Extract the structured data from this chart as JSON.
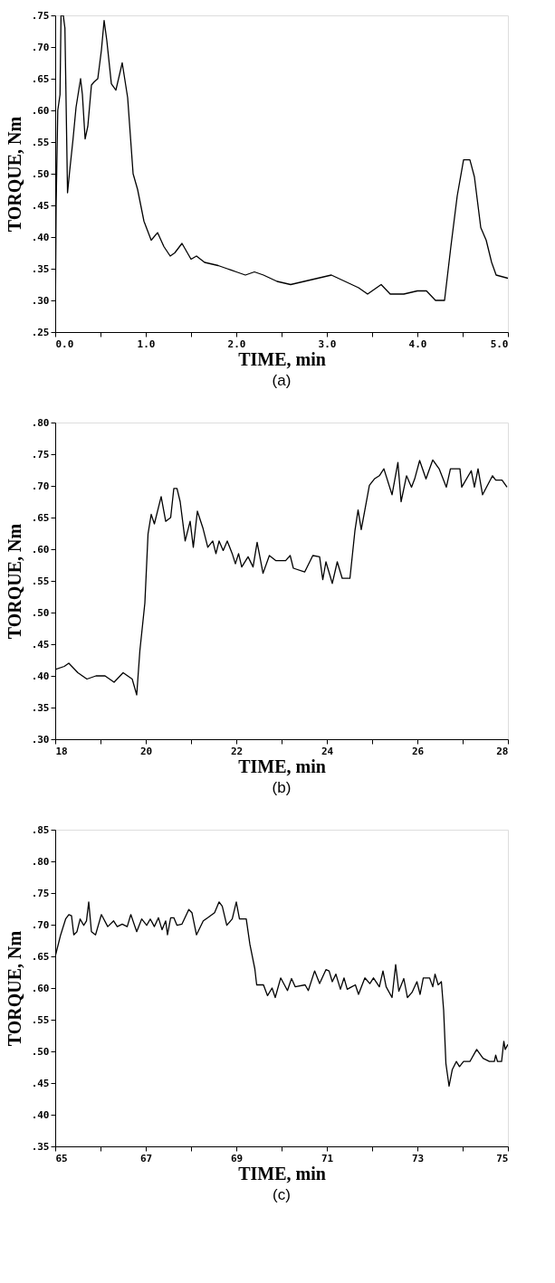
{
  "chart_data": [
    {
      "type": "line",
      "title": "(a)",
      "xlabel": "TIME, min",
      "ylabel": "TORQUE, Nm",
      "grid": false,
      "marker": "none",
      "line_style": "solid",
      "xlim": [
        0,
        5
      ],
      "xticks": [
        {
          "value": 0,
          "label": "0.0"
        },
        {
          "value": 0.5,
          "label": null
        },
        {
          "value": 1,
          "label": "1.0"
        },
        {
          "value": 1.5,
          "label": null
        },
        {
          "value": 2,
          "label": "2.0"
        },
        {
          "value": 2.5,
          "label": null
        },
        {
          "value": 3,
          "label": "3.0"
        },
        {
          "value": 3.5,
          "label": null
        },
        {
          "value": 4,
          "label": "4.0"
        },
        {
          "value": 4.5,
          "label": null
        },
        {
          "value": 5,
          "label": "5.0"
        }
      ],
      "ylim": [
        0.25,
        0.75
      ],
      "yticks": [
        {
          "value": 0.25,
          "label": ".25"
        },
        {
          "value": 0.3,
          "label": ".30"
        },
        {
          "value": 0.35,
          "label": ".35"
        },
        {
          "value": 0.4,
          "label": ".40"
        },
        {
          "value": 0.45,
          "label": ".45"
        },
        {
          "value": 0.5,
          "label": ".50"
        },
        {
          "value": 0.55,
          "label": ".55"
        },
        {
          "value": 0.6,
          "label": ".60"
        },
        {
          "value": 0.65,
          "label": ".65"
        },
        {
          "value": 0.7,
          "label": ".70"
        },
        {
          "value": 0.75,
          "label": ".75"
        }
      ],
      "x": [
        0,
        0.01,
        0.028,
        0.053,
        0.064,
        0.089,
        0.107,
        0.136,
        0.16,
        0.197,
        0.23,
        0.28,
        0.3,
        0.33,
        0.36,
        0.4,
        0.43,
        0.47,
        0.51,
        0.54,
        0.57,
        0.62,
        0.67,
        0.74,
        0.8,
        0.86,
        0.91,
        0.98,
        1.06,
        1.13,
        1.2,
        1.27,
        1.32,
        1.4,
        1.5,
        1.56,
        1.65,
        1.8,
        1.9,
        2.0,
        2.1,
        2.2,
        2.3,
        2.45,
        2.6,
        2.75,
        2.9,
        3.05,
        3.2,
        3.35,
        3.45,
        3.6,
        3.7,
        3.85,
        4.0,
        4.1,
        4.2,
        4.3,
        4.37,
        4.44,
        4.51,
        4.58,
        4.63,
        4.7,
        4.76,
        4.82,
        4.87,
        5.0
      ],
      "series": [
        {
          "color": "#000000",
          "values": [
            0.25,
            0.45,
            0.6,
            0.625,
            0.75,
            0.75,
            0.73,
            0.47,
            0.505,
            0.555,
            0.605,
            0.65,
            0.625,
            0.555,
            0.575,
            0.64,
            0.645,
            0.65,
            0.695,
            0.742,
            0.71,
            0.642,
            0.632,
            0.675,
            0.62,
            0.5,
            0.475,
            0.425,
            0.395,
            0.407,
            0.385,
            0.37,
            0.375,
            0.39,
            0.365,
            0.37,
            0.36,
            0.355,
            0.35,
            0.345,
            0.34,
            0.345,
            0.34,
            0.33,
            0.325,
            0.33,
            0.335,
            0.34,
            0.33,
            0.32,
            0.31,
            0.325,
            0.31,
            0.31,
            0.315,
            0.315,
            0.3,
            0.3,
            0.385,
            0.465,
            0.522,
            0.522,
            0.495,
            0.415,
            0.395,
            0.36,
            0.34,
            0.335
          ]
        }
      ]
    },
    {
      "type": "line",
      "title": "(b)",
      "xlabel": "TIME, min",
      "ylabel": "TORQUE, Nm",
      "grid": false,
      "marker": "none",
      "line_style": "solid",
      "xlim": [
        18,
        28
      ],
      "xticks": [
        18,
        {
          "value": 19,
          "label": null
        },
        20,
        {
          "value": 21,
          "label": null
        },
        22,
        {
          "value": 23,
          "label": null
        },
        24,
        {
          "value": 25,
          "label": null
        },
        26,
        {
          "value": 27,
          "label": null
        },
        28
      ],
      "ylim": [
        0.3,
        0.8
      ],
      "yticks": [
        {
          "value": 0.3,
          "label": ".30"
        },
        {
          "value": 0.35,
          "label": ".35"
        },
        {
          "value": 0.4,
          "label": ".40"
        },
        {
          "value": 0.45,
          "label": ".45"
        },
        {
          "value": 0.5,
          "label": ".50"
        },
        {
          "value": 0.55,
          "label": ".55"
        },
        {
          "value": 0.6,
          "label": ".60"
        },
        {
          "value": 0.65,
          "label": ".65"
        },
        {
          "value": 0.7,
          "label": ".70"
        },
        {
          "value": 0.75,
          "label": ".75"
        },
        {
          "value": 0.8,
          "label": ".80"
        }
      ],
      "x": [
        18,
        18.2,
        18.3,
        18.5,
        18.7,
        18.9,
        19.1,
        19.3,
        19.5,
        19.7,
        19.8,
        19.87,
        19.98,
        20.05,
        20.12,
        20.19,
        20.34,
        20.44,
        20.55,
        20.62,
        20.69,
        20.76,
        20.87,
        20.98,
        21.05,
        21.14,
        21.26,
        21.37,
        21.48,
        21.55,
        21.62,
        21.71,
        21.8,
        21.91,
        21.98,
        22.05,
        22.12,
        22.26,
        22.37,
        22.46,
        22.59,
        22.73,
        22.87,
        23.09,
        23.19,
        23.26,
        23.51,
        23.69,
        23.84,
        23.91,
        23.98,
        24.12,
        24.23,
        24.34,
        24.51,
        24.62,
        24.69,
        24.76,
        24.94,
        25.05,
        25.16,
        25.26,
        25.44,
        25.57,
        25.64,
        25.76,
        25.87,
        25.94,
        26.05,
        26.19,
        26.34,
        26.48,
        26.64,
        26.73,
        26.94,
        26.98,
        27.19,
        27.26,
        27.34,
        27.44,
        27.66,
        27.73,
        27.87,
        27.98
      ],
      "series": [
        {
          "color": "#000000",
          "values": [
            0.41,
            0.415,
            0.42,
            0.405,
            0.395,
            0.4,
            0.4,
            0.39,
            0.405,
            0.395,
            0.37,
            0.44,
            0.515,
            0.624,
            0.655,
            0.64,
            0.683,
            0.644,
            0.65,
            0.696,
            0.696,
            0.675,
            0.613,
            0.644,
            0.603,
            0.66,
            0.634,
            0.603,
            0.613,
            0.593,
            0.613,
            0.598,
            0.613,
            0.593,
            0.577,
            0.593,
            0.572,
            0.588,
            0.572,
            0.611,
            0.562,
            0.59,
            0.582,
            0.582,
            0.59,
            0.57,
            0.564,
            0.59,
            0.588,
            0.552,
            0.58,
            0.546,
            0.58,
            0.554,
            0.554,
            0.629,
            0.662,
            0.631,
            0.701,
            0.711,
            0.716,
            0.727,
            0.686,
            0.737,
            0.675,
            0.716,
            0.698,
            0.711,
            0.74,
            0.711,
            0.741,
            0.727,
            0.698,
            0.727,
            0.727,
            0.698,
            0.724,
            0.698,
            0.727,
            0.686,
            0.716,
            0.709,
            0.709,
            0.698
          ]
        }
      ]
    },
    {
      "type": "line",
      "title": "(c)",
      "xlabel": "TIME, min",
      "ylabel": "TORQUE, Nm",
      "grid": false,
      "marker": "none",
      "line_style": "solid",
      "xlim": [
        65,
        75
      ],
      "xticks": [
        65,
        {
          "value": 66,
          "label": null
        },
        67,
        {
          "value": 68,
          "label": null
        },
        69,
        {
          "value": 70,
          "label": null
        },
        71,
        {
          "value": 72,
          "label": null
        },
        73,
        {
          "value": 74,
          "label": null
        },
        75
      ],
      "ylim": [
        0.35,
        0.85
      ],
      "yticks": [
        {
          "value": 0.35,
          "label": ".35"
        },
        {
          "value": 0.4,
          "label": ".40"
        },
        {
          "value": 0.45,
          "label": ".45"
        },
        {
          "value": 0.5,
          "label": ".50"
        },
        {
          "value": 0.55,
          "label": ".55"
        },
        {
          "value": 0.6,
          "label": ".60"
        },
        {
          "value": 0.65,
          "label": ".65"
        },
        {
          "value": 0.7,
          "label": ".70"
        },
        {
          "value": 0.75,
          "label": ".75"
        },
        {
          "value": 0.8,
          "label": ".80"
        },
        {
          "value": 0.85,
          "label": ".85"
        }
      ],
      "x": [
        65,
        65.12,
        65.23,
        65.3,
        65.36,
        65.41,
        65.48,
        65.55,
        65.63,
        65.69,
        65.74,
        65.8,
        65.89,
        66.02,
        66.16,
        66.29,
        66.37,
        66.48,
        66.59,
        66.67,
        66.8,
        66.91,
        67.02,
        67.1,
        67.19,
        67.28,
        67.36,
        67.44,
        67.48,
        67.55,
        67.62,
        67.69,
        67.8,
        67.95,
        68.02,
        68.12,
        68.27,
        68.37,
        68.52,
        68.62,
        68.69,
        68.79,
        68.91,
        69.0,
        69.07,
        69.22,
        69.3,
        69.41,
        69.45,
        69.6,
        69.69,
        69.79,
        69.86,
        69.98,
        70.13,
        70.22,
        70.3,
        70.52,
        70.59,
        70.73,
        70.84,
        70.98,
        71.05,
        71.12,
        71.2,
        71.3,
        71.38,
        71.45,
        71.55,
        71.63,
        71.7,
        71.84,
        71.95,
        72.03,
        72.16,
        72.24,
        72.31,
        72.44,
        72.52,
        72.59,
        72.7,
        72.78,
        72.88,
        72.99,
        73.06,
        73.13,
        73.27,
        73.34,
        73.39,
        73.46,
        73.53,
        73.58,
        73.63,
        73.7,
        73.77,
        73.86,
        73.93,
        74.02,
        74.16,
        74.31,
        74.45,
        74.59,
        74.7,
        74.73,
        74.77,
        74.86,
        74.91,
        74.94,
        75.0
      ],
      "series": [
        {
          "color": "#000000",
          "values": [
            0.65,
            0.684,
            0.709,
            0.716,
            0.714,
            0.684,
            0.689,
            0.709,
            0.699,
            0.706,
            0.736,
            0.689,
            0.684,
            0.716,
            0.697,
            0.706,
            0.697,
            0.701,
            0.697,
            0.716,
            0.689,
            0.709,
            0.699,
            0.709,
            0.697,
            0.711,
            0.692,
            0.706,
            0.684,
            0.711,
            0.711,
            0.699,
            0.701,
            0.724,
            0.719,
            0.684,
            0.706,
            0.711,
            0.719,
            0.736,
            0.729,
            0.699,
            0.709,
            0.736,
            0.709,
            0.709,
            0.669,
            0.63,
            0.605,
            0.605,
            0.588,
            0.6,
            0.585,
            0.616,
            0.596,
            0.615,
            0.602,
            0.605,
            0.596,
            0.627,
            0.607,
            0.629,
            0.627,
            0.61,
            0.622,
            0.598,
            0.616,
            0.598,
            0.602,
            0.605,
            0.59,
            0.616,
            0.607,
            0.616,
            0.602,
            0.627,
            0.602,
            0.585,
            0.637,
            0.595,
            0.615,
            0.585,
            0.593,
            0.61,
            0.59,
            0.616,
            0.616,
            0.602,
            0.622,
            0.605,
            0.61,
            0.565,
            0.481,
            0.445,
            0.471,
            0.484,
            0.476,
            0.484,
            0.484,
            0.503,
            0.489,
            0.484,
            0.484,
            0.494,
            0.484,
            0.484,
            0.516,
            0.503,
            0.511
          ]
        }
      ]
    }
  ]
}
